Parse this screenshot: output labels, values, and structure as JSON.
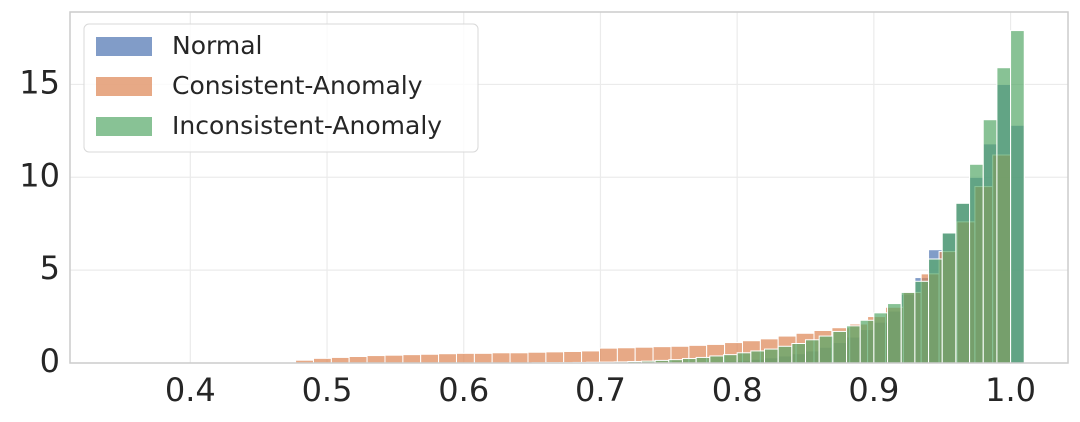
{
  "chart_data": {
    "type": "histogram",
    "legend": "upper left",
    "grid": true,
    "xlim": [
      0.312,
      1.042
    ],
    "ylim": [
      0,
      18.9
    ],
    "xticks": [
      0.4,
      0.5,
      0.6,
      0.7,
      0.8,
      0.9,
      {
        "value": 1,
        "label": "1.0"
      }
    ],
    "yticks": [
      0,
      5,
      10,
      15
    ],
    "series": [
      {
        "name": "Normal",
        "color": "#4c72b0",
        "bins": [
          0.65,
          0.66,
          0.67,
          0.68,
          0.69,
          0.7,
          0.71,
          0.72,
          0.73,
          0.74,
          0.75,
          0.76,
          0.77,
          0.78,
          0.79,
          0.8,
          0.81,
          0.82,
          0.83,
          0.84,
          0.85,
          0.86,
          0.87,
          0.88,
          0.89,
          0.9,
          0.91,
          0.92,
          0.93,
          0.94,
          0.95,
          0.96,
          0.97,
          0.98,
          0.99,
          1.0,
          1.01
        ],
        "values": [
          0,
          0,
          0,
          0,
          0,
          0.01,
          0.01,
          0.01,
          0.02,
          0.02,
          0.03,
          0.04,
          0.05,
          0.07,
          0.1,
          0.15,
          0.2,
          0.28,
          0.38,
          0.5,
          0.65,
          0.85,
          1.1,
          1.4,
          1.8,
          2.2,
          2.8,
          3.7,
          4.6,
          6.1,
          7.0,
          8.6,
          10.0,
          11.8,
          15.0,
          12.8
        ]
      },
      {
        "name": "Consistent-Anomaly",
        "color": "#dd8452",
        "bins": [
          0.477,
          0.4901,
          0.5032,
          0.5162,
          0.5293,
          0.5424,
          0.5555,
          0.5685,
          0.5816,
          0.5947,
          0.6078,
          0.6208,
          0.6339,
          0.647,
          0.6601,
          0.6731,
          0.6862,
          0.6993,
          0.7124,
          0.7254,
          0.7385,
          0.7516,
          0.7647,
          0.7777,
          0.7908,
          0.8039,
          0.817,
          0.83,
          0.8431,
          0.8562,
          0.8693,
          0.8823,
          0.8954,
          0.9085,
          0.9216,
          0.9346,
          0.9477,
          0.9608,
          0.9739,
          0.9869,
          1.0
        ],
        "values": [
          0.15,
          0.25,
          0.3,
          0.35,
          0.4,
          0.42,
          0.45,
          0.47,
          0.5,
          0.52,
          0.52,
          0.55,
          0.55,
          0.58,
          0.6,
          0.62,
          0.65,
          0.8,
          0.82,
          0.85,
          0.88,
          0.9,
          0.95,
          1.0,
          1.1,
          1.2,
          1.3,
          1.45,
          1.6,
          1.75,
          1.9,
          2.1,
          2.5,
          3.0,
          3.8,
          4.8,
          6.0,
          7.6,
          9.5,
          11.2
        ]
      },
      {
        "name": "Inconsistent-Anomaly",
        "color": "#55a868",
        "bins": [
          0.65,
          0.66,
          0.67,
          0.68,
          0.69,
          0.7,
          0.71,
          0.72,
          0.73,
          0.74,
          0.75,
          0.76,
          0.77,
          0.78,
          0.79,
          0.8,
          0.81,
          0.82,
          0.83,
          0.84,
          0.85,
          0.86,
          0.87,
          0.88,
          0.89,
          0.9,
          0.91,
          0.92,
          0.93,
          0.94,
          0.95,
          0.96,
          0.97,
          0.98,
          0.99,
          1.0,
          1.01
        ],
        "values": [
          0.01,
          0.02,
          0.02,
          0.03,
          0.04,
          0.05,
          0.06,
          0.08,
          0.1,
          0.14,
          0.18,
          0.24,
          0.3,
          0.38,
          0.45,
          0.55,
          0.65,
          0.75,
          0.9,
          1.05,
          1.25,
          1.45,
          1.7,
          2.0,
          2.3,
          2.7,
          3.2,
          3.8,
          4.4,
          5.6,
          7.0,
          8.6,
          10.7,
          13.1,
          15.9,
          17.9
        ]
      }
    ]
  }
}
